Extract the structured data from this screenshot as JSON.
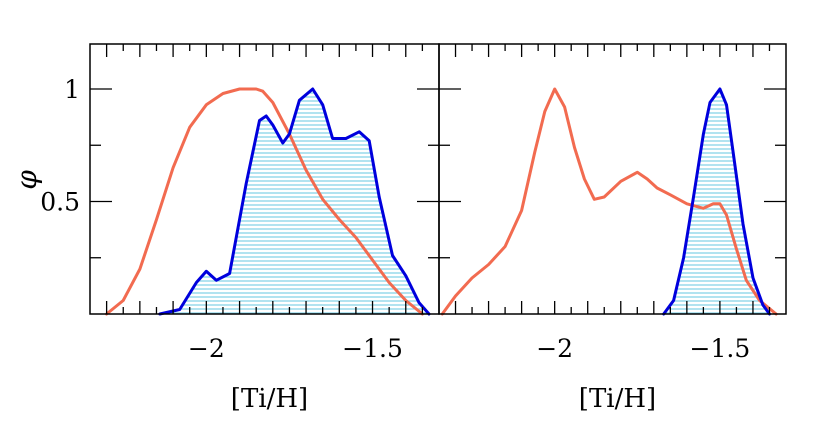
{
  "chart_data": [
    {
      "type": "area",
      "xlabel": "[Ti/H]",
      "ylabel": "φ",
      "xlim": [
        -2.35,
        -1.3
      ],
      "ylim": [
        0,
        1.2
      ],
      "xticks": [
        -2,
        -1.5
      ],
      "xtick_labels": [
        "−2",
        "−1.5"
      ],
      "yticks": [
        0.5,
        1
      ],
      "ytick_labels": [
        "0.5",
        "1"
      ],
      "grid": false,
      "series": [
        {
          "color": "#f26b50",
          "fill": false,
          "x": [
            -2.3,
            -2.25,
            -2.2,
            -2.15,
            -2.1,
            -2.05,
            -2.0,
            -1.95,
            -1.9,
            -1.85,
            -1.83,
            -1.8,
            -1.75,
            -1.7,
            -1.65,
            -1.6,
            -1.55,
            -1.5,
            -1.45,
            -1.4,
            -1.35
          ],
          "y": [
            0.0,
            0.06,
            0.2,
            0.42,
            0.65,
            0.83,
            0.93,
            0.98,
            1.0,
            1.0,
            0.99,
            0.94,
            0.8,
            0.64,
            0.51,
            0.42,
            0.34,
            0.24,
            0.14,
            0.06,
            0.0
          ]
        },
        {
          "color": "#0000dd",
          "fill": true,
          "fill_color": "#7fd1e6",
          "x": [
            -2.14,
            -2.08,
            -2.03,
            -2.0,
            -1.97,
            -1.93,
            -1.88,
            -1.84,
            -1.82,
            -1.8,
            -1.77,
            -1.75,
            -1.72,
            -1.68,
            -1.65,
            -1.62,
            -1.58,
            -1.54,
            -1.51,
            -1.48,
            -1.44,
            -1.4,
            -1.36,
            -1.33
          ],
          "y": [
            0.0,
            0.02,
            0.14,
            0.19,
            0.15,
            0.18,
            0.58,
            0.86,
            0.88,
            0.84,
            0.76,
            0.8,
            0.95,
            1.0,
            0.93,
            0.78,
            0.78,
            0.81,
            0.77,
            0.52,
            0.26,
            0.17,
            0.05,
            0.0
          ]
        }
      ]
    },
    {
      "type": "area",
      "xlabel": "[Ti/H]",
      "ylabel": "",
      "xlim": [
        -2.35,
        -1.3
      ],
      "ylim": [
        0,
        1.2
      ],
      "xticks": [
        -2,
        -1.5
      ],
      "xtick_labels": [
        "−2",
        "−1.5"
      ],
      "yticks": [
        0.5,
        1
      ],
      "ytick_labels": [],
      "grid": false,
      "series": [
        {
          "color": "#f26b50",
          "fill": false,
          "x": [
            -2.34,
            -2.3,
            -2.25,
            -2.2,
            -2.15,
            -2.1,
            -2.06,
            -2.03,
            -2.0,
            -1.97,
            -1.94,
            -1.91,
            -1.88,
            -1.85,
            -1.8,
            -1.75,
            -1.72,
            -1.69,
            -1.65,
            -1.6,
            -1.55,
            -1.52,
            -1.5,
            -1.48,
            -1.45,
            -1.42,
            -1.38,
            -1.33
          ],
          "y": [
            0.0,
            0.08,
            0.16,
            0.22,
            0.3,
            0.46,
            0.72,
            0.9,
            1.0,
            0.92,
            0.74,
            0.6,
            0.51,
            0.52,
            0.59,
            0.63,
            0.6,
            0.56,
            0.53,
            0.49,
            0.47,
            0.49,
            0.49,
            0.44,
            0.29,
            0.15,
            0.06,
            0.0
          ]
        },
        {
          "color": "#0000dd",
          "fill": true,
          "fill_color": "#7fd1e6",
          "x": [
            -1.67,
            -1.64,
            -1.61,
            -1.58,
            -1.55,
            -1.53,
            -1.5,
            -1.48,
            -1.46,
            -1.43,
            -1.4,
            -1.37,
            -1.35
          ],
          "y": [
            0.0,
            0.06,
            0.25,
            0.52,
            0.8,
            0.94,
            1.0,
            0.93,
            0.72,
            0.4,
            0.16,
            0.04,
            0.0
          ]
        }
      ]
    }
  ]
}
